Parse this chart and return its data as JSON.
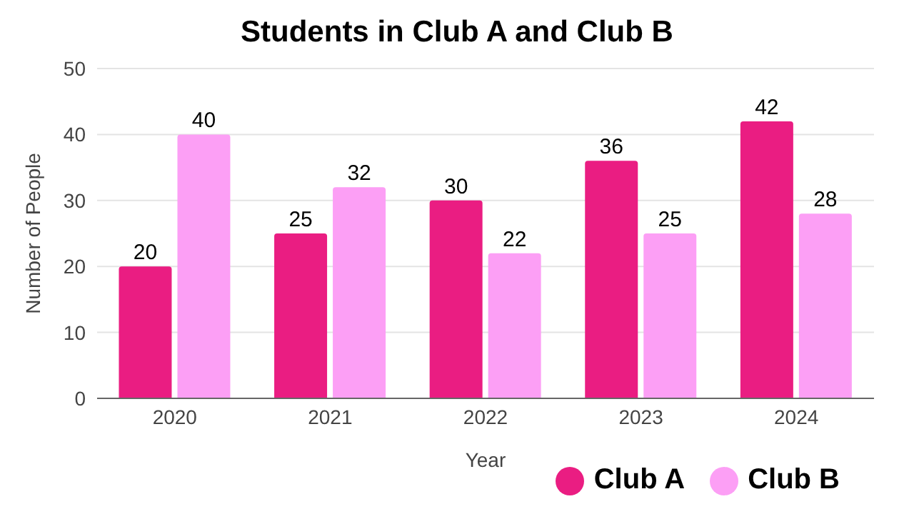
{
  "chart_data": {
    "type": "bar",
    "title": "Students in Club A and Club B",
    "xlabel": "Year",
    "ylabel": "Number of People",
    "categories": [
      "2020",
      "2021",
      "2022",
      "2023",
      "2024"
    ],
    "series": [
      {
        "name": "Club A",
        "color": "#ea1d82",
        "values": [
          20,
          25,
          30,
          36,
          42
        ]
      },
      {
        "name": "Club B",
        "color": "#fc9ff5",
        "values": [
          40,
          32,
          22,
          25,
          28
        ]
      }
    ],
    "ylim": [
      0,
      50
    ],
    "yticks": [
      0,
      10,
      20,
      30,
      40,
      50
    ],
    "grid": "y",
    "legend": "bottom right",
    "data_labels": true
  }
}
